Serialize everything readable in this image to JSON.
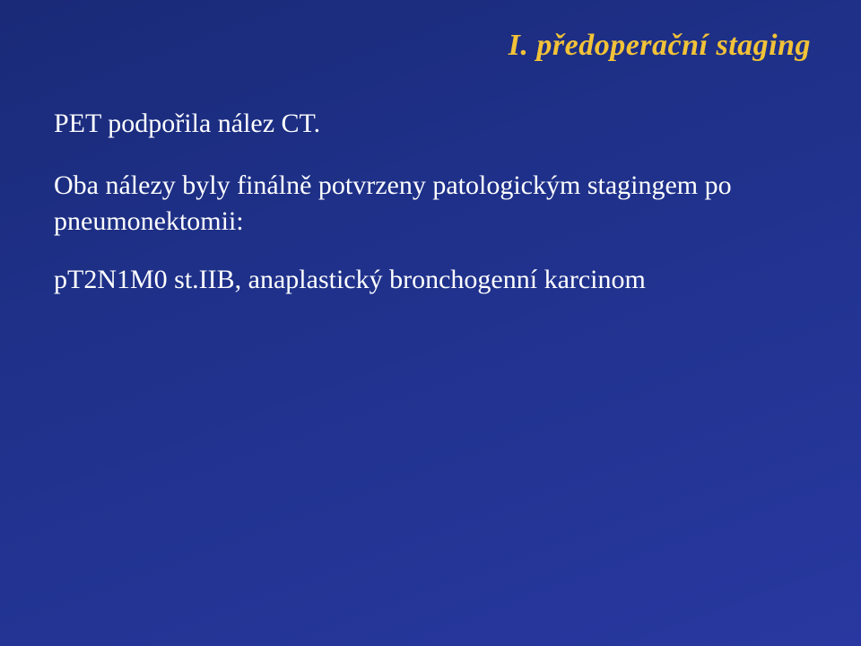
{
  "slide": {
    "title": "I. předoperační staging",
    "para1": "PET podpořila nález CT.",
    "para2": "Oba nálezy byly finálně potvrzeny patologickým stagingem po pneumonektomii:",
    "para3": "pT2N1M0 st.IIB, anaplastický bronchogenní karcinom",
    "title_color": "#f2c238",
    "text_color": "#ffffff",
    "background_gradient_start": "#1a2a78",
    "background_gradient_end": "#2838a0",
    "title_fontsize": 34,
    "body_fontsize": 30
  }
}
